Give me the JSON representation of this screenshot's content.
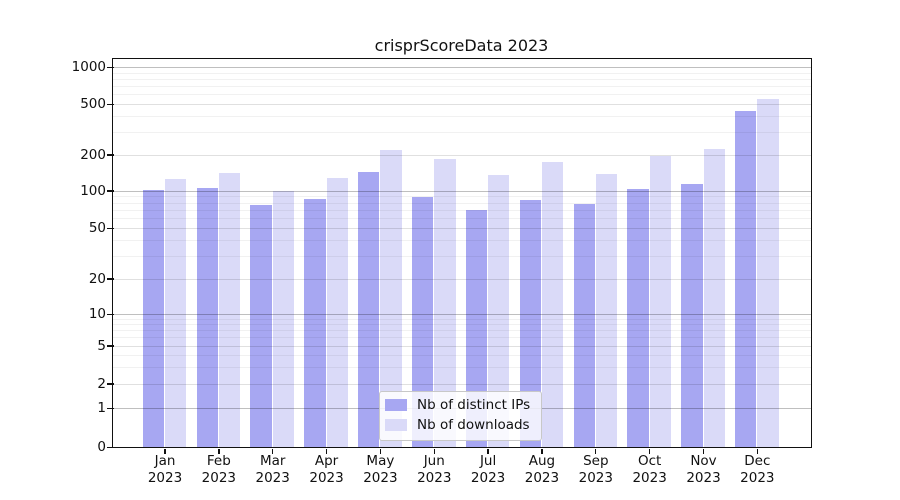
{
  "figure": {
    "title": "crisprScoreData 2023"
  },
  "chart_data": {
    "type": "bar",
    "title": "crisprScoreData 2023",
    "categories": [
      "Jan 2023",
      "Feb 2023",
      "Mar 2023",
      "Apr 2023",
      "May 2023",
      "Jun 2023",
      "Jul 2023",
      "Aug 2023",
      "Sep 2023",
      "Oct 2023",
      "Nov 2023",
      "Dec 2023"
    ],
    "series": [
      {
        "name": "Nb of distinct IPs",
        "color": "#a7a7f2",
        "values": [
          102,
          105,
          76,
          86,
          143,
          89,
          70,
          84,
          78,
          103,
          114,
          440
        ]
      },
      {
        "name": "Nb of downloads",
        "color": "#dadaf8",
        "values": [
          126,
          139,
          100,
          127,
          218,
          184,
          136,
          172,
          138,
          196,
          220,
          550
        ]
      }
    ],
    "y_ticks": [
      0,
      1,
      2,
      5,
      10,
      20,
      50,
      100,
      200,
      500,
      1000
    ],
    "y_scale": "log-like (compressed below 5, linear 0-1)",
    "ylim": [
      0,
      1000
    ],
    "xlabel": "",
    "ylabel": "",
    "grid": true,
    "legend_position": "inside bottom-center"
  }
}
